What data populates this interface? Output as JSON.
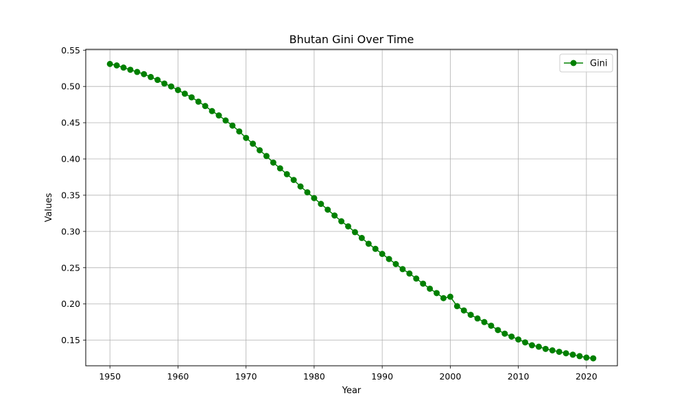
{
  "chart_data": {
    "type": "line",
    "title": "Bhutan Gini Over Time",
    "xlabel": "Year",
    "ylabel": "Values",
    "x": [
      1950,
      1951,
      1952,
      1953,
      1954,
      1955,
      1956,
      1957,
      1958,
      1959,
      1960,
      1961,
      1962,
      1963,
      1964,
      1965,
      1966,
      1967,
      1968,
      1969,
      1970,
      1971,
      1972,
      1973,
      1974,
      1975,
      1976,
      1977,
      1978,
      1979,
      1980,
      1981,
      1982,
      1983,
      1984,
      1985,
      1986,
      1987,
      1988,
      1989,
      1990,
      1991,
      1992,
      1993,
      1994,
      1995,
      1996,
      1997,
      1998,
      1999,
      2000,
      2001,
      2002,
      2003,
      2004,
      2005,
      2006,
      2007,
      2008,
      2009,
      2010,
      2011,
      2012,
      2013,
      2014,
      2015,
      2016,
      2017,
      2018,
      2019,
      2020,
      2021
    ],
    "series": [
      {
        "name": "Gini",
        "color": "#008000",
        "values": [
          0.531,
          0.529,
          0.526,
          0.523,
          0.52,
          0.517,
          0.513,
          0.509,
          0.504,
          0.5,
          0.495,
          0.49,
          0.485,
          0.479,
          0.473,
          0.466,
          0.46,
          0.453,
          0.446,
          0.438,
          0.429,
          0.421,
          0.412,
          0.404,
          0.395,
          0.387,
          0.379,
          0.371,
          0.362,
          0.354,
          0.346,
          0.338,
          0.33,
          0.322,
          0.314,
          0.307,
          0.299,
          0.291,
          0.283,
          0.276,
          0.269,
          0.262,
          0.255,
          0.248,
          0.242,
          0.235,
          0.228,
          0.221,
          0.215,
          0.208,
          0.21,
          0.197,
          0.191,
          0.185,
          0.18,
          0.175,
          0.17,
          0.164,
          0.159,
          0.155,
          0.151,
          0.147,
          0.143,
          0.141,
          0.138,
          0.136,
          0.134,
          0.132,
          0.13,
          0.128,
          0.126,
          0.125
        ]
      }
    ],
    "xlim": [
      1946.45,
      2024.55
    ],
    "ylim": [
      0.1147,
      0.5512
    ],
    "x_ticks": [
      1950,
      1960,
      1970,
      1980,
      1990,
      2000,
      2010,
      2020
    ],
    "x_tick_labels": [
      "1950",
      "1960",
      "1970",
      "1980",
      "1990",
      "2000",
      "2010",
      "2020"
    ],
    "y_ticks": [
      0.15,
      0.2,
      0.25,
      0.3,
      0.35,
      0.4,
      0.45,
      0.5,
      0.55
    ],
    "y_tick_labels": [
      "0.15",
      "0.20",
      "0.25",
      "0.30",
      "0.35",
      "0.40",
      "0.45",
      "0.50",
      "0.55"
    ],
    "grid": true,
    "legend_position": "top-right",
    "marker": "circle"
  }
}
